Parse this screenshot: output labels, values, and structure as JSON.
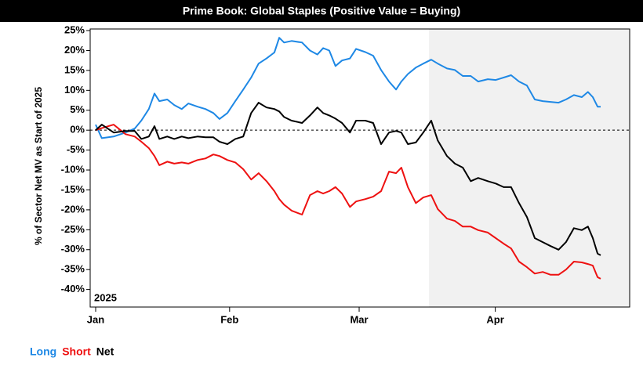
{
  "chart_data": {
    "type": "line",
    "title": "Prime Book: Global Staples (Positive Value = Buying)",
    "y_label": "% of Sector Net MV as Start of 2025",
    "annotation": "2025",
    "x": [
      0,
      1.4,
      4.1,
      6.8,
      8.9,
      10.4,
      12.1,
      13.4,
      14.5,
      16.3,
      17.9,
      19.6,
      21.1,
      23.2,
      25,
      26.8,
      28.2,
      30,
      31.8,
      33.6,
      35.4,
      37.1,
      38.9,
      40.7,
      41.8,
      42.9,
      44.6,
      47,
      48.8,
      50.5,
      51.8,
      53.2,
      54.6,
      56.1,
      57.9,
      59.3,
      61.4,
      63.2,
      65,
      66.8,
      68.4,
      69.6,
      71.1,
      72.9,
      74.6,
      76.4,
      77.9,
      80,
      81.8,
      83.6,
      85.4,
      87.1,
      89.3,
      91.1,
      92.9,
      94.6,
      96.4,
      98.2,
      100,
      101.8,
      103.6,
      105.4,
      107.1,
      108.9,
      110.7,
      112.1,
      113.2,
      114.3,
      115
    ],
    "xlim": [
      -1.25,
      121.6
    ],
    "xticks": [
      {
        "value": 0,
        "label": "Jan"
      },
      {
        "value": 30.5,
        "label": "Feb"
      },
      {
        "value": 60,
        "label": "Mar"
      },
      {
        "value": 91,
        "label": "Apr"
      }
    ],
    "ylim": [
      -44.4,
      25.4
    ],
    "yticks": [
      {
        "value": 25,
        "label": "25%"
      },
      {
        "value": 20,
        "label": "20%"
      },
      {
        "value": 15,
        "label": "15%"
      },
      {
        "value": 10,
        "label": "10%"
      },
      {
        "value": 5,
        "label": "5%"
      },
      {
        "value": 0,
        "label": "0%"
      },
      {
        "value": -5,
        "label": "-5%"
      },
      {
        "value": -10,
        "label": "-10%"
      },
      {
        "value": -15,
        "label": "-15%"
      },
      {
        "value": -20,
        "label": "-20%"
      },
      {
        "value": -25,
        "label": "-25%"
      },
      {
        "value": -30,
        "label": "-30%"
      },
      {
        "value": -35,
        "label": "-35%"
      },
      {
        "value": -40,
        "label": "-40%"
      }
    ],
    "zero_line": true,
    "shaded_region": [
      75.9,
      121.6
    ],
    "series": [
      {
        "name": "Long",
        "color": "#1e88e5",
        "values": [
          1.4,
          -2,
          -1.6,
          -0.6,
          0.4,
          2.4,
          5.3,
          9.2,
          7.3,
          7.7,
          6.3,
          5.3,
          6.7,
          5.9,
          5.3,
          4.3,
          2.8,
          4.3,
          7.3,
          10.2,
          13.2,
          16.7,
          18,
          19.5,
          23.2,
          22,
          22.4,
          22,
          20,
          19,
          20.6,
          20,
          16.1,
          17.5,
          18,
          20.4,
          19.6,
          18.7,
          15.1,
          12.2,
          10.2,
          12.2,
          14.1,
          15.7,
          16.7,
          17.7,
          16.7,
          15.5,
          15.1,
          13.6,
          13.6,
          12.2,
          12.8,
          12.6,
          13.2,
          13.8,
          12.2,
          11.2,
          7.7,
          7.3,
          7.1,
          6.9,
          7.7,
          8.8,
          8.3,
          9.6,
          8.3,
          5.9,
          5.9
        ]
      },
      {
        "name": "Short",
        "color": "#ee1111",
        "values": [
          0,
          0.5,
          1.4,
          -1,
          -1.6,
          -2.9,
          -4.5,
          -6.5,
          -8.8,
          -7.9,
          -8.4,
          -8.1,
          -8.4,
          -7.5,
          -7.1,
          -6.1,
          -6.5,
          -7.5,
          -8.1,
          -9.8,
          -12.4,
          -10.8,
          -12.8,
          -15.3,
          -17.3,
          -18.7,
          -20.2,
          -21.2,
          -16.3,
          -15.3,
          -15.9,
          -15.3,
          -14.3,
          -15.9,
          -19.3,
          -17.9,
          -17.3,
          -16.7,
          -15.3,
          -10.4,
          -10.8,
          -9.4,
          -14.3,
          -18.3,
          -16.9,
          -16.3,
          -19.8,
          -22.2,
          -22.8,
          -24.2,
          -24.2,
          -25.1,
          -25.7,
          -27.1,
          -28.5,
          -29.7,
          -33,
          -34.4,
          -36,
          -35.6,
          -36.3,
          -36.3,
          -35,
          -33,
          -33.2,
          -33.6,
          -34,
          -36.9,
          -37.3
        ]
      },
      {
        "name": "Net",
        "color": "#000000",
        "values": [
          0,
          1.4,
          -0.6,
          -0.2,
          -0.2,
          -2.2,
          -1.6,
          1,
          -2.2,
          -1.6,
          -2.2,
          -1.6,
          -2,
          -1.6,
          -1.8,
          -1.8,
          -2.9,
          -3.5,
          -2.2,
          -1.6,
          4.3,
          6.9,
          5.7,
          5.3,
          4.7,
          3.3,
          2.4,
          1.8,
          3.7,
          5.7,
          4.3,
          3.7,
          2.9,
          1.8,
          -0.6,
          2.4,
          2.4,
          1.8,
          -3.5,
          -0.6,
          -0.2,
          -0.6,
          -3.5,
          -3.1,
          -0.6,
          2.4,
          -2.6,
          -6.5,
          -8.4,
          -9.4,
          -12.8,
          -12,
          -12.8,
          -13.4,
          -14.3,
          -14.3,
          -18.3,
          -21.8,
          -27.1,
          -28.1,
          -29.1,
          -30,
          -28.1,
          -24.6,
          -25.1,
          -24.2,
          -27.1,
          -31,
          -31.4
        ]
      }
    ]
  }
}
